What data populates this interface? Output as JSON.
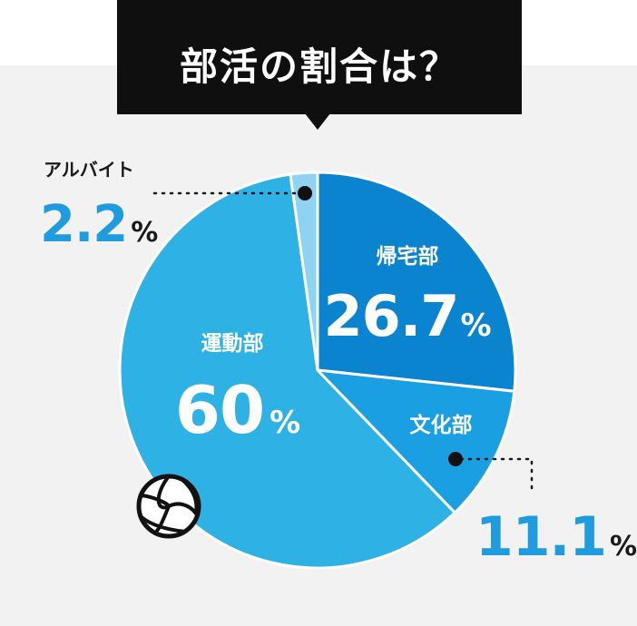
{
  "title": "部活の割合は？",
  "chart_data": {
    "type": "pie",
    "title": "部活の割合は？",
    "categories": [
      "帰宅部",
      "文化部",
      "運動部",
      "アルバイト"
    ],
    "values": [
      26.7,
      11.1,
      60,
      2.2
    ],
    "value_labels": [
      "26.7",
      "11.1",
      "60",
      "2.2"
    ],
    "unit": "%",
    "colors": [
      "#0a84cf",
      "#1a9fe2",
      "#2eb2e5",
      "#8ed3f2"
    ],
    "start_angle": "12 o'clock",
    "direction": "clockwise",
    "legend": "none"
  }
}
